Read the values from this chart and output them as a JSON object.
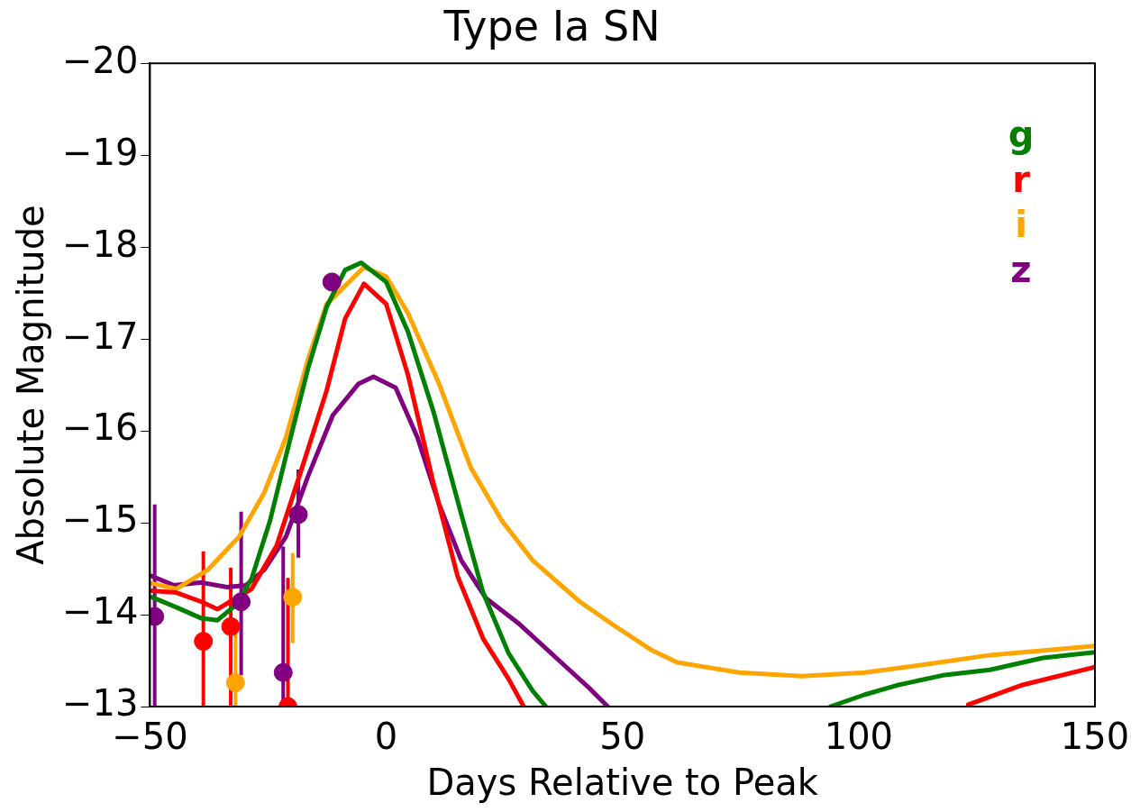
{
  "chart_data": {
    "type": "line",
    "title": "Type Ia SN",
    "xlabel": "Days Relative to Peak",
    "ylabel": "Absolute Magnitude",
    "xlim": [
      -50,
      150
    ],
    "xticks": [
      -50,
      0,
      50,
      100,
      150
    ],
    "ylim": [
      -13,
      -20
    ],
    "yticks": [
      -20,
      -19,
      -18,
      -17,
      -16,
      -15,
      -14,
      -13
    ],
    "grid": false,
    "legend": "top right",
    "line_style": "solid",
    "series": [
      {
        "type": "line",
        "name": "g",
        "color": "#008000",
        "x": [
          -49.6,
          -44.4,
          -39.1,
          -35.7,
          -31.7,
          -28.5,
          -24.6,
          -21.2,
          -16.6,
          -12.6,
          -8.7,
          -5.3,
          0,
          4.6,
          10,
          15.9,
          20.5,
          25.9,
          31,
          33.8,
          null,
          94,
          101.3,
          108,
          117.8,
          127.8,
          139,
          150
        ],
        "values": [
          -14.19,
          -14.08,
          -13.96,
          -13.94,
          -14.11,
          -14.39,
          -15.02,
          -15.73,
          -16.67,
          -17.35,
          -17.75,
          -17.83,
          -17.62,
          -17.08,
          -16.21,
          -15.09,
          -14.24,
          -13.58,
          -13.17,
          -13.0,
          null,
          -13.0,
          -13.13,
          -13.23,
          -13.34,
          -13.4,
          -13.53,
          -13.59
        ]
      },
      {
        "type": "line",
        "name": "r",
        "color": "#ff0000",
        "x": [
          -49.6,
          -44.4,
          -39.1,
          -35.7,
          -28.5,
          -23.2,
          -17.8,
          -12.6,
          -8.7,
          -4.7,
          0,
          4.6,
          10,
          15.1,
          20.5,
          25.9,
          29.1,
          null,
          123.2,
          134.3,
          150
        ],
        "values": [
          -14.26,
          -14.24,
          -14.14,
          -14.06,
          -14.28,
          -14.75,
          -15.6,
          -16.44,
          -17.22,
          -17.6,
          -17.38,
          -16.61,
          -15.43,
          -14.42,
          -13.74,
          -13.3,
          -13.0,
          null,
          -13.02,
          -13.23,
          -13.43
        ]
      },
      {
        "type": "line",
        "name": "i",
        "color": "#ffa500",
        "x": [
          -49.6,
          -44.4,
          -37.7,
          -31.1,
          -25.8,
          -21.2,
          -16.6,
          -12.6,
          -4.7,
          0,
          4.6,
          11.2,
          17.9,
          24.5,
          31,
          41,
          48.3,
          56.3,
          61.6,
          74.7,
          88,
          101.3,
          114.5,
          127.8,
          150
        ],
        "values": [
          -14.34,
          -14.28,
          -14.49,
          -14.85,
          -15.33,
          -15.93,
          -16.77,
          -17.38,
          -17.78,
          -17.68,
          -17.28,
          -16.51,
          -15.6,
          -15.02,
          -14.59,
          -14.14,
          -13.88,
          -13.61,
          -13.48,
          -13.37,
          -13.33,
          -13.37,
          -13.46,
          -13.56,
          -13.66
        ]
      },
      {
        "type": "line",
        "name": "z",
        "color": "#800080",
        "x": [
          -49.6,
          -45,
          -39.1,
          -33.7,
          -29.7,
          -25.8,
          -21.2,
          -16.6,
          -11.3,
          -5.9,
          -2.7,
          2,
          6.6,
          11.2,
          15.9,
          21.1,
          27.9,
          36.4,
          43,
          46.9
        ],
        "values": [
          -14.42,
          -14.32,
          -14.35,
          -14.3,
          -14.32,
          -14.49,
          -14.85,
          -15.5,
          -16.17,
          -16.51,
          -16.59,
          -16.47,
          -15.93,
          -15.2,
          -14.59,
          -14.18,
          -13.91,
          -13.51,
          -13.2,
          -13.0
        ]
      },
      {
        "type": "scatter",
        "color": "#ff0000",
        "marker": "circle",
        "x": [
          -38.7,
          -32.9,
          -20.8
        ],
        "values": [
          -13.71,
          -13.87,
          -13.0
        ],
        "errors": [
          [
            -14.69,
            -13.0
          ],
          [
            -14.51,
            -13.0
          ],
          [
            -14.4,
            -13.0
          ]
        ]
      },
      {
        "type": "scatter",
        "color": "#ffa500",
        "marker": "circle",
        "x": [
          -31.9,
          -19.8
        ],
        "values": [
          -13.26,
          -14.19
        ],
        "errors": [
          [
            -13.91,
            -13.0
          ],
          [
            -14.67,
            -13.69
          ]
        ]
      },
      {
        "type": "scatter",
        "color": "#800080",
        "marker": "circle",
        "x": [
          -49,
          -30.7,
          -21.8,
          -18.6,
          -11.5
        ],
        "values": [
          -13.98,
          -14.14,
          -13.37,
          -15.09,
          -17.62
        ],
        "errors": [
          [
            -15.2,
            -13.0
          ],
          [
            -15.12,
            -13.34
          ],
          [
            -14.74,
            -13.0
          ],
          [
            -15.58,
            -14.62
          ],
          null
        ]
      }
    ]
  }
}
